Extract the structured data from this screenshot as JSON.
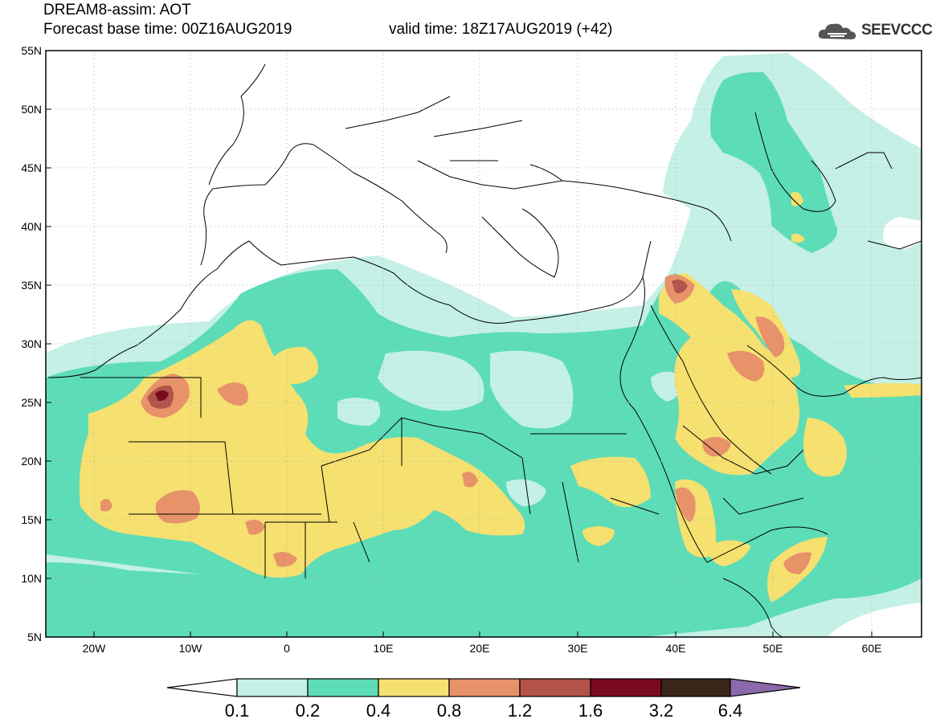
{
  "header": {
    "title": "DREAM8-assim: AOT",
    "forecast_base": "Forecast base time: 00Z16AUG2019",
    "valid_time": "valid time: 18Z17AUG2019 (+42)",
    "logo_text": "SEEVCCC"
  },
  "axes": {
    "lat_labels": [
      "55N",
      "50N",
      "45N",
      "40N",
      "35N",
      "30N",
      "25N",
      "20N",
      "15N",
      "10N",
      "5N"
    ],
    "lon_labels": [
      "20W",
      "10W",
      "0",
      "10E",
      "20E",
      "30E",
      "40E",
      "50E",
      "60E"
    ]
  },
  "colorbar": {
    "labels": [
      "0.1",
      "0.2",
      "0.4",
      "0.8",
      "1.2",
      "1.6",
      "3.2",
      "6.4"
    ],
    "colors": [
      "#ffffff",
      "#c4f0e6",
      "#5ddcb8",
      "#f5e070",
      "#e8926a",
      "#b2524a",
      "#7a0a20",
      "#3a2618",
      "#8a6aa8"
    ]
  },
  "colors": {
    "aot_0_1": "#c4f0e6",
    "aot_0_2": "#5ddcb8",
    "aot_0_4": "#f5e070",
    "aot_0_8": "#e8926a",
    "aot_1_2": "#b2524a",
    "aot_1_6": "#7a0a20"
  }
}
